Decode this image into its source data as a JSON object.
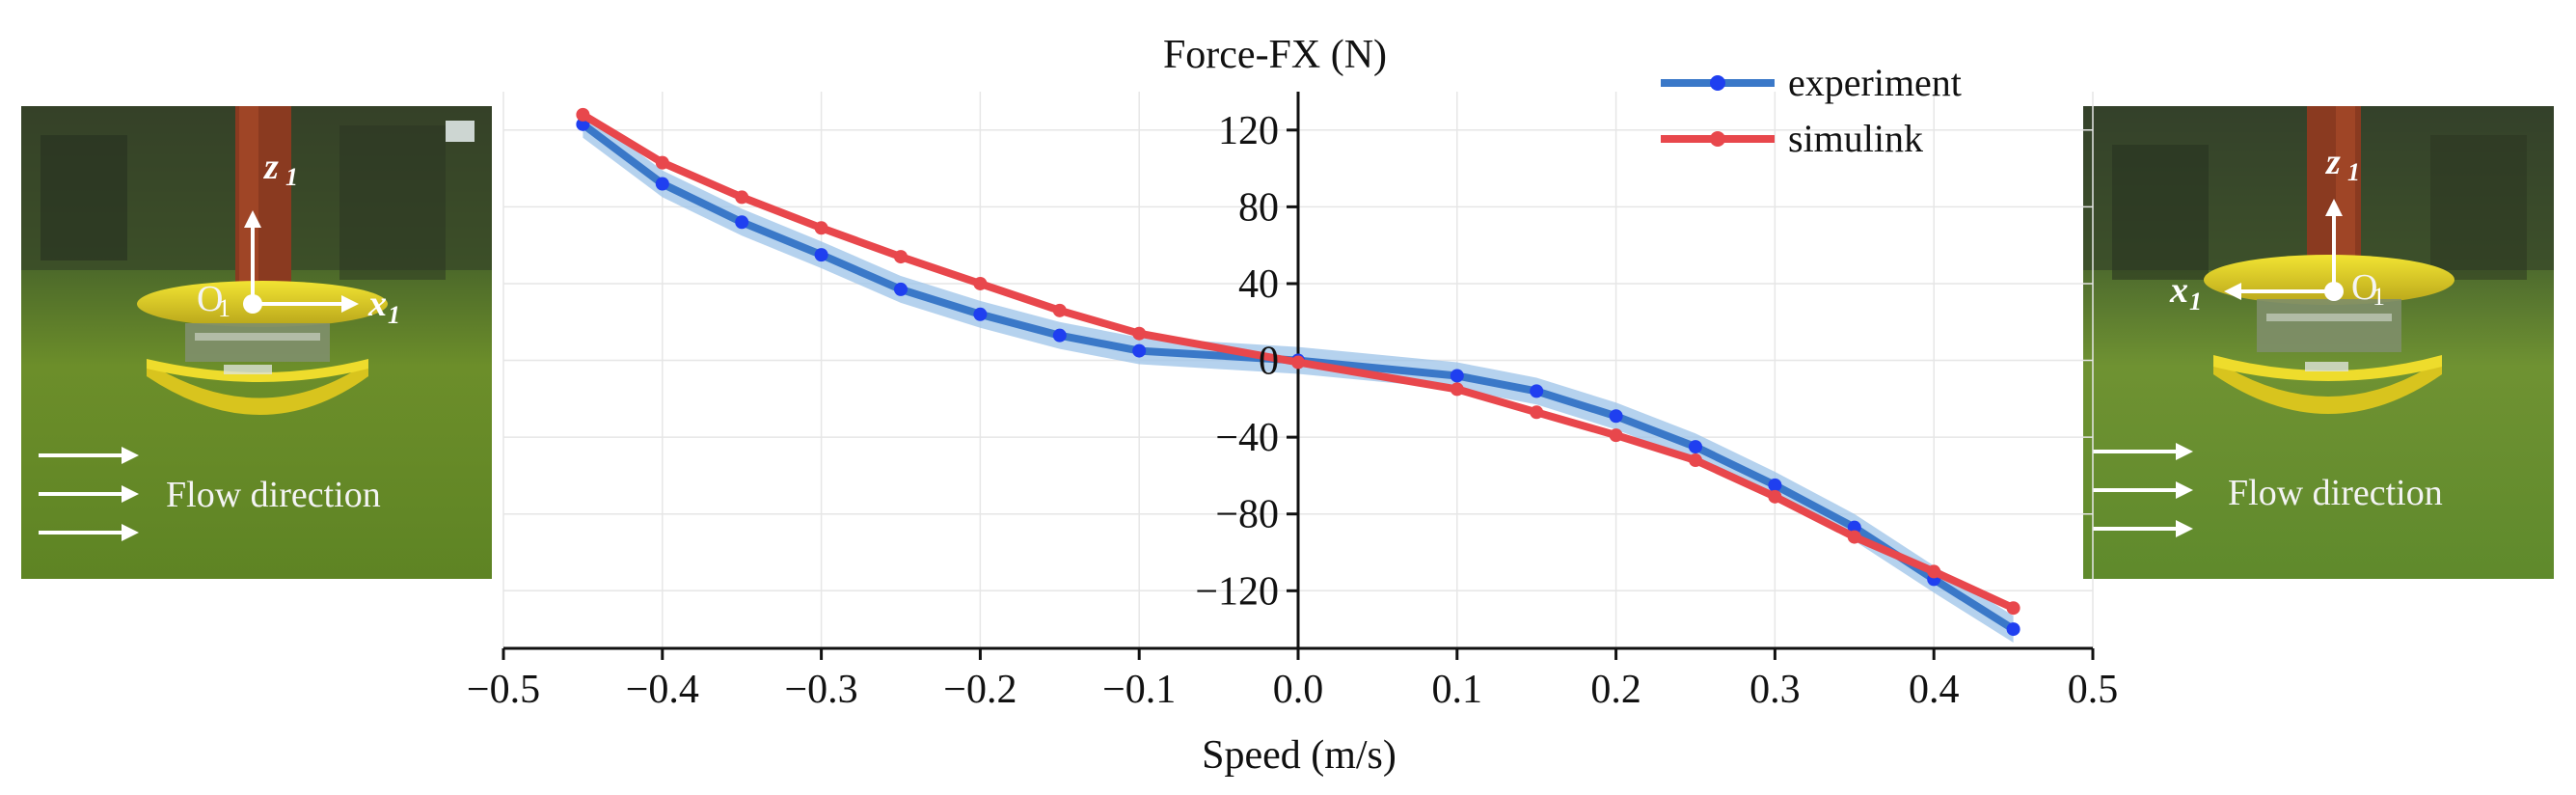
{
  "chart_data": {
    "type": "line",
    "title": "Force-FX (N)",
    "xlabel": "Speed (m/s)",
    "ylabel": "Force-FX (N)",
    "xlim": [
      -0.5,
      0.5
    ],
    "ylim": [
      -150,
      140
    ],
    "xticks": [
      -0.5,
      -0.4,
      -0.3,
      -0.2,
      -0.1,
      0.0,
      0.1,
      0.2,
      0.3,
      0.4,
      0.5
    ],
    "xtick_labels": [
      "−0.5",
      "−0.4",
      "−0.3",
      "−0.2",
      "−0.1",
      "0.0",
      "0.1",
      "0.2",
      "0.3",
      "0.4",
      "0.5"
    ],
    "yticks": [
      120,
      80,
      40,
      0,
      -40,
      -80,
      -120
    ],
    "ytick_labels": [
      "120",
      "80",
      "40",
      "0",
      "−40",
      "−80",
      "−120"
    ],
    "grid": true,
    "legend_position": "top-right",
    "series": [
      {
        "name": "experiment",
        "color": "#3a78c8",
        "marker_color": "#1f3ff0",
        "band_color": "#9cc3e8",
        "x": [
          -0.45,
          -0.4,
          -0.35,
          -0.3,
          -0.25,
          -0.2,
          -0.15,
          -0.1,
          0.0,
          0.1,
          0.15,
          0.2,
          0.25,
          0.3,
          0.35,
          0.4,
          0.45
        ],
        "y": [
          123,
          92,
          72,
          55,
          37,
          24,
          13,
          5,
          0,
          -8,
          -16,
          -29,
          -45,
          -65,
          -87,
          -114,
          -140
        ],
        "band_halfwidth": 7
      },
      {
        "name": "simulink",
        "color": "#e8474c",
        "marker_color": "#e8474c",
        "x": [
          -0.45,
          -0.4,
          -0.35,
          -0.3,
          -0.25,
          -0.2,
          -0.15,
          -0.1,
          0.0,
          0.1,
          0.15,
          0.2,
          0.25,
          0.3,
          0.35,
          0.4,
          0.45
        ],
        "y": [
          128,
          103,
          85,
          69,
          54,
          40,
          26,
          14,
          -1,
          -15,
          -27,
          -39,
          -52,
          -71,
          -92,
          -110,
          -129
        ]
      }
    ]
  },
  "photos": {
    "left": {
      "flow_label": "Flow direction",
      "z_label": "z",
      "z_sub": "1",
      "x_label": "x",
      "x_sub": "1",
      "origin_label": "O",
      "origin_sub": "1"
    },
    "right": {
      "flow_label": "Flow direction",
      "z_label": "z",
      "z_sub": "1",
      "x_label": "x",
      "x_sub": "1",
      "origin_label": "O",
      "origin_sub": "1"
    }
  }
}
